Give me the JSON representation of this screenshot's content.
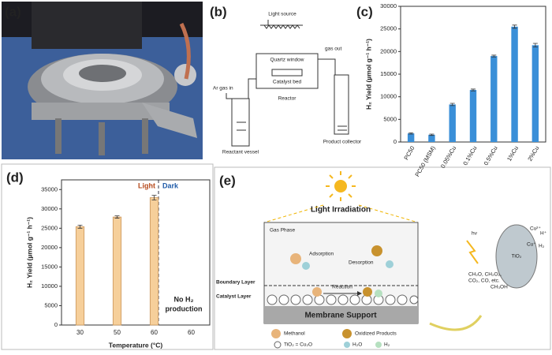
{
  "panels": [
    "(a)",
    "(b)",
    "(c)",
    "(d)",
    "(e)"
  ],
  "diagram_b": {
    "light_source": "Light source",
    "quartz_window": "Quartz window",
    "catalyst_bed": "Catalyst bed",
    "gas_out": "gas out",
    "gas_in": "Ar gas in",
    "reactor": "Reactor",
    "reactant_vessel": "Reactant vessel",
    "product_collector": "Product collector"
  },
  "chart_data": [
    {
      "type": "bar",
      "y_label": "H₂ Yield (µmol g⁻¹ h⁻¹)",
      "categories": [
        "PC50",
        "PC50 (MSM)",
        "0.05%Cu",
        "0.1%Cu",
        "0.5%Cu",
        "1%Cu",
        "2%Cu"
      ],
      "values": [
        1900,
        1600,
        8300,
        11500,
        19000,
        25500,
        21400
      ],
      "errors": [
        150,
        150,
        250,
        200,
        200,
        350,
        400
      ],
      "color": "#3a8fd8",
      "ylim": [
        0,
        30000
      ],
      "yticks": [
        0,
        5000,
        10000,
        15000,
        20000,
        25000,
        30000
      ],
      "x_label_rotate": true
    },
    {
      "type": "bar",
      "y_label": "H₂ Yield (µmol g⁻¹ h⁻¹)",
      "x_label": "Temperature (°C)",
      "categories": [
        "30",
        "50",
        "60",
        "60"
      ],
      "values": [
        25400,
        27900,
        32900,
        null
      ],
      "errors": [
        400,
        300,
        600,
        null
      ],
      "color": "#f6cf9a",
      "ylim": [
        0,
        37500
      ],
      "yticks": [
        0,
        5000,
        10000,
        15000,
        20000,
        25000,
        30000,
        35000
      ],
      "annotations": [
        "Light",
        "Dark"
      ],
      "note": [
        "No H₂",
        "production"
      ]
    }
  ],
  "diagram_e": {
    "light": "Light Irradiation",
    "gas_phase": "Gas Phase",
    "adsorption": "Adsorption",
    "desorption": "Desorption",
    "reaction": "Reaction",
    "boundary": "Boundary Layer",
    "catalyst": "Catalyst Layer",
    "membrane": "Membrane Support",
    "methanol": "Methanol",
    "oxidized": "Oxidized Products",
    "catalyst_key": "TiO₂ = Cu₂O",
    "water": "H₂O",
    "hydrogen": "H₂",
    "hv": "hν",
    "tio2": "TiO₂",
    "cu2": "Cu²⁺",
    "cu1": "Cu⁺",
    "hplus": "H⁺",
    "h2": "H₂",
    "products": "CH₂O, CH₂O₂,",
    "products2": "CO₂, CO, etc.",
    "methanol_formula": "CH₃OH"
  }
}
